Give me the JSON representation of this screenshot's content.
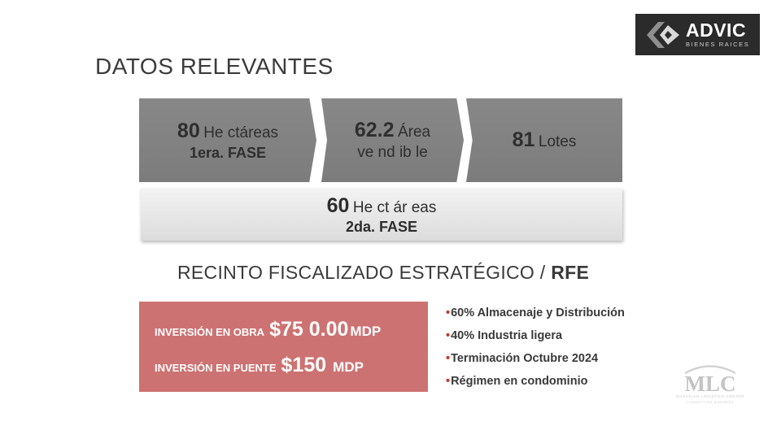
{
  "logo": {
    "name": "ADVIC",
    "subtitle": "BIENES RAICES",
    "icon": "advic-diamond-icon"
  },
  "title": "DATOS RELEVANTES",
  "phase1": [
    {
      "number": "80",
      "unit": "He ctáreas",
      "sub": "1era. FASE"
    },
    {
      "number": "62.2",
      "unit": "Área",
      "unit2": "ve nd ib le"
    },
    {
      "number": "81",
      "unit": "Lotes"
    }
  ],
  "phase2": {
    "number": "60",
    "unit": "He ct ár eas",
    "sub": "2da. FASE"
  },
  "rfe": {
    "prefix": "RECINTO FISCALIZADO ESTRATÉGICO / ",
    "strong": "RFE"
  },
  "investments": [
    {
      "label": "INVERSIÓN EN OBRA",
      "amount": "$75 0.00",
      "unit": "MDP"
    },
    {
      "label": "INVERSIÓN EN PUENTE",
      "amount": "$150",
      "unit": "MDP"
    }
  ],
  "bullets": [
    "60% Almacenaje y Distribución",
    "40% Industria ligera",
    "Terminación Octubre 2024",
    "Régimen en condominio"
  ],
  "watermark": {
    "name": "MLC",
    "subtitle": "MAZATLAN LOGISTICS CENTER",
    "tagline": "CONNECTING BUSINESS"
  },
  "colors": {
    "accent": "#cd7272",
    "bullet": "#c0392b",
    "box_dark": "#808080",
    "logo_bg": "#2b2b2b"
  }
}
